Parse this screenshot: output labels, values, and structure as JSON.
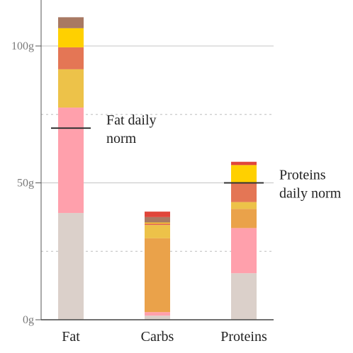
{
  "chart_data": {
    "type": "bar",
    "stacked": true,
    "categories": [
      "Fat",
      "Carbs",
      "Proteins"
    ],
    "ylim": [
      0,
      116
    ],
    "y_ticks": [
      {
        "value": 0,
        "label": "0g"
      },
      {
        "value": 50,
        "label": "50g"
      },
      {
        "value": 100,
        "label": "100g"
      }
    ],
    "minor_gridlines": [
      25,
      75
    ],
    "colors": [
      "#dbd0ca",
      "#ffa0ac",
      "#eaa24a",
      "#edc249",
      "#e47655",
      "#ffd000",
      "#a87963",
      "#e0463a"
    ],
    "stacks": [
      {
        "category": "Fat",
        "segments": [
          39,
          38.5,
          0,
          14,
          8,
          7,
          4,
          0
        ]
      },
      {
        "category": "Carbs",
        "segments": [
          1.5,
          1.3,
          27,
          4.8,
          0.6,
          0.3,
          2.0,
          2.0
        ]
      },
      {
        "category": "Proteins",
        "segments": [
          17,
          16.5,
          7,
          2.5,
          7,
          6.5,
          0,
          1.2
        ]
      }
    ],
    "norms": [
      {
        "category": "Fat",
        "value": 70,
        "label_lines": [
          "Fat daily",
          "norm"
        ]
      },
      {
        "category": "Proteins",
        "value": 50,
        "label_lines": [
          "Proteins",
          "daily norm"
        ]
      }
    ],
    "grid": true
  }
}
